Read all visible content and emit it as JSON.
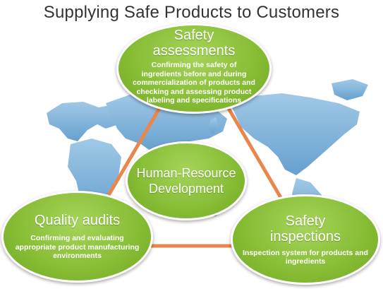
{
  "title": "Supplying Safe Products to Customers",
  "colors": {
    "node_green": "#86bc34",
    "connector_orange": "#e8864c",
    "map_blue": "#7fb2d9"
  },
  "nodes": {
    "safety_assessments": {
      "heading_line1": "Safety",
      "heading_line2": "assessments",
      "desc_line1": "Confirming the safety of",
      "desc_line2": "ingredients before and during",
      "desc_line3": "commercialization of products and",
      "desc_line4": "checking and assessing product",
      "desc_line5": "labeling and specifications"
    },
    "human_resource": {
      "heading_line1": "Human-Resource",
      "heading_line2": "Development"
    },
    "quality_audits": {
      "heading_line1": "Quality audits",
      "desc_line1": "Confirming and evaluating",
      "desc_line2": "appropriate product manufacturing",
      "desc_line3": "environments"
    },
    "safety_inspections": {
      "heading_line1": "Safety",
      "heading_line2": "inspections",
      "desc_line1": "Inspection system for products and",
      "desc_line2": "ingredients"
    }
  }
}
